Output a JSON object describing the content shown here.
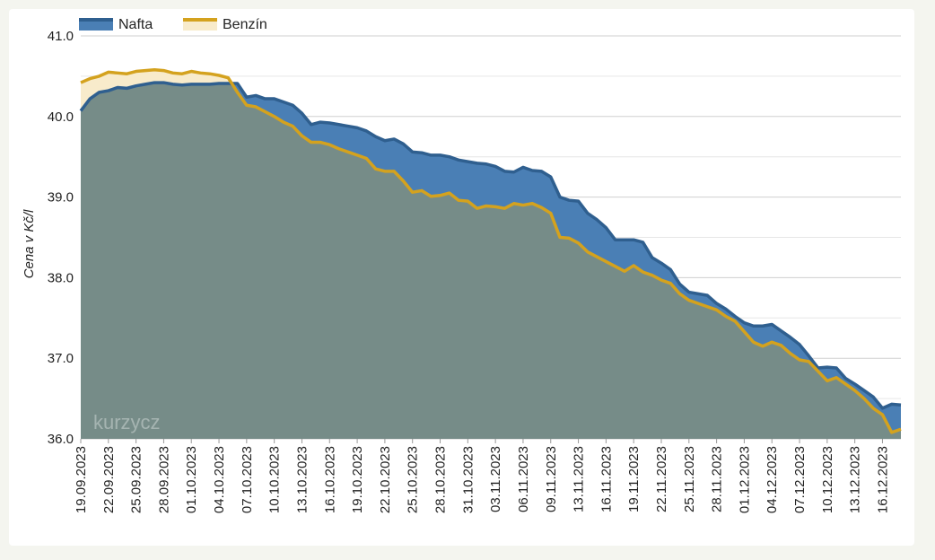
{
  "chart_data": {
    "type": "area",
    "ylabel": "Cena v Kč/l",
    "ylim": [
      36.0,
      41.0
    ],
    "yticks": [
      "41.0",
      "40.0",
      "39.0",
      "38.0",
      "37.0",
      "36.0"
    ],
    "grid": true,
    "legend": "top-left",
    "watermark": "kurzycz",
    "x_tick_labels": [
      "19.09.2023",
      "22.09.2023",
      "25.09.2023",
      "28.09.2023",
      "01.10.2023",
      "04.10.2023",
      "07.10.2023",
      "10.10.2023",
      "13.10.2023",
      "16.10.2023",
      "19.10.2023",
      "22.10.2023",
      "25.10.2023",
      "28.10.2023",
      "31.10.2023",
      "03.11.2023",
      "06.11.2023",
      "09.11.2023",
      "13.11.2023",
      "16.11.2023",
      "19.11.2023",
      "22.11.2023",
      "25.11.2023",
      "28.11.2023",
      "01.12.2023",
      "04.12.2023",
      "07.12.2023",
      "10.12.2023",
      "13.12.2023",
      "16.12.2023"
    ],
    "x_start": "19.09.2023",
    "x_end": "18.12.2023",
    "series": [
      {
        "name": "Nafta",
        "color": "#2f5f8f",
        "fill": "#4a7fb5",
        "values": [
          40.07,
          40.22,
          40.3,
          40.32,
          40.36,
          40.35,
          40.38,
          40.4,
          40.42,
          40.42,
          40.4,
          40.39,
          40.4,
          40.4,
          40.4,
          40.41,
          40.41,
          40.41,
          40.24,
          40.26,
          40.22,
          40.22,
          40.18,
          40.14,
          40.04,
          39.9,
          39.93,
          39.92,
          39.9,
          39.88,
          39.86,
          39.82,
          39.75,
          39.7,
          39.72,
          39.66,
          39.56,
          39.55,
          39.52,
          39.52,
          39.5,
          39.46,
          39.44,
          39.42,
          39.41,
          39.38,
          39.32,
          39.31,
          39.37,
          39.33,
          39.32,
          39.25,
          39.0,
          38.96,
          38.95,
          38.8,
          38.72,
          38.62,
          38.47,
          38.47,
          38.47,
          38.44,
          38.25,
          38.18,
          38.1,
          37.92,
          37.82,
          37.8,
          37.78,
          37.68,
          37.61,
          37.52,
          37.44,
          37.4,
          37.4,
          37.42,
          37.34,
          37.26,
          37.17,
          37.03,
          36.88,
          36.89,
          36.88,
          36.75,
          36.68,
          36.6,
          36.52,
          36.38,
          36.43,
          36.42
        ]
      },
      {
        "name": "Benzín",
        "color": "#d4a21e",
        "fill": "#f8ebcb",
        "values": [
          40.42,
          40.47,
          40.5,
          40.55,
          40.54,
          40.53,
          40.56,
          40.57,
          40.58,
          40.57,
          40.54,
          40.53,
          40.56,
          40.54,
          40.53,
          40.51,
          40.48,
          40.3,
          40.14,
          40.12,
          40.06,
          40.0,
          39.93,
          39.88,
          39.76,
          39.68,
          39.68,
          39.65,
          39.6,
          39.56,
          39.52,
          39.48,
          39.35,
          39.32,
          39.32,
          39.2,
          39.06,
          39.08,
          39.01,
          39.02,
          39.05,
          38.96,
          38.95,
          38.86,
          38.89,
          38.88,
          38.86,
          38.92,
          38.9,
          38.92,
          38.87,
          38.8,
          38.5,
          38.49,
          38.43,
          38.32,
          38.26,
          38.2,
          38.14,
          38.08,
          38.15,
          38.07,
          38.03,
          37.97,
          37.93,
          37.8,
          37.72,
          37.68,
          37.64,
          37.6,
          37.52,
          37.46,
          37.33,
          37.2,
          37.15,
          37.2,
          37.16,
          37.06,
          36.98,
          36.96,
          36.84,
          36.72,
          36.76,
          36.68,
          36.6,
          36.5,
          36.38,
          36.3,
          36.08,
          36.12
        ]
      }
    ]
  }
}
